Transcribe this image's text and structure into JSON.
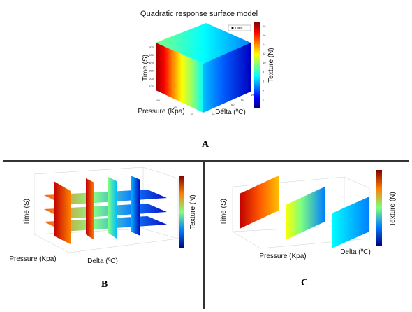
{
  "panels": {
    "a": {
      "letter": "A"
    },
    "b": {
      "letter": "B"
    },
    "c": {
      "letter": "C"
    }
  },
  "colorscale": [
    "#00007f",
    "#0000ff",
    "#007fff",
    "#00ffff",
    "#7fff7f",
    "#ffff00",
    "#ff7f00",
    "#ff0000",
    "#7f0000"
  ],
  "chart_data": [
    {
      "id": "A",
      "type": "surface",
      "title": "Quadratic response surface model",
      "legend": {
        "entries": [
          "Data"
        ],
        "placement": "top-right"
      },
      "axes": {
        "x": {
          "label": "Pressure (Kpa)",
          "ticks": [
            "20",
            "40",
            "60"
          ]
        },
        "y": {
          "label": "Delta (ºC)",
          "ticks": [
            "20",
            "40",
            "60",
            "80",
            "100"
          ]
        },
        "z": {
          "label": "Time (S)",
          "ticks": [
            "100",
            "200",
            "300",
            "400",
            "500",
            "600"
          ]
        }
      },
      "colorbar": {
        "label": "Texture (N)",
        "ticks": [
          "2",
          "4",
          "6",
          "8",
          "10",
          "12",
          "14",
          "16",
          "18"
        ],
        "range": [
          0,
          19
        ]
      }
    },
    {
      "id": "B",
      "type": "slice",
      "axes": {
        "x": {
          "label": "Pressure (Kpa)"
        },
        "y": {
          "label": "Delta (ºC)"
        },
        "z": {
          "label": "Time (S)"
        }
      },
      "colorbar": {
        "label": "Texture (N)"
      }
    },
    {
      "id": "C",
      "type": "slice",
      "axes": {
        "x": {
          "label": "Pressure (Kpa)"
        },
        "y": {
          "label": "Delta (ºC)"
        },
        "z": {
          "label": "Time (S)"
        }
      },
      "colorbar": {
        "label": "Texture (N)"
      }
    }
  ]
}
